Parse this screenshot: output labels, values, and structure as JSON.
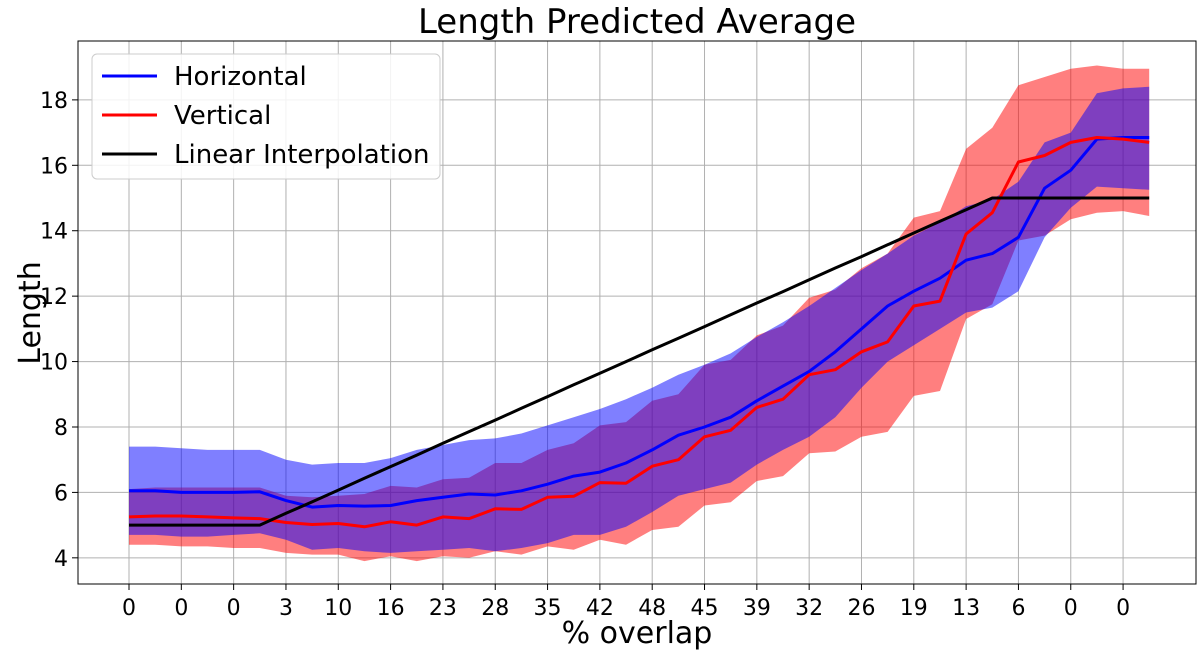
{
  "chart_data": {
    "type": "line",
    "title": "Length Predicted Average",
    "xlabel": "% overlap",
    "ylabel": "Length",
    "xtick_labels": [
      "0",
      "0",
      "0",
      "3",
      "10",
      "16",
      "23",
      "28",
      "35",
      "42",
      "48",
      "45",
      "39",
      "32",
      "26",
      "19",
      "13",
      "6",
      "0",
      "0"
    ],
    "ylim": [
      3.2,
      19.8
    ],
    "yticks": [
      4,
      6,
      8,
      10,
      12,
      14,
      16,
      18
    ],
    "grid": true,
    "legend_position": "top-left",
    "series": [
      {
        "name": "Horizontal",
        "color": "#0000ff",
        "band_color": "#0000ff",
        "values": [
          6.05,
          6.05,
          6.0,
          6.0,
          6.0,
          6.02,
          5.75,
          5.55,
          5.6,
          5.58,
          5.6,
          5.75,
          5.85,
          5.95,
          5.92,
          6.05,
          6.25,
          6.5,
          6.62,
          6.9,
          7.3,
          7.75,
          8.0,
          8.3,
          8.8,
          9.25,
          9.7,
          10.3,
          11.0,
          11.7,
          12.15,
          12.55,
          13.1,
          13.3,
          13.8,
          15.3,
          15.85,
          16.8,
          16.85,
          16.85
        ],
        "band_upper": [
          7.4,
          7.4,
          7.35,
          7.3,
          7.3,
          7.3,
          7.0,
          6.85,
          6.9,
          6.9,
          7.05,
          7.3,
          7.45,
          7.6,
          7.65,
          7.8,
          8.05,
          8.3,
          8.55,
          8.85,
          9.2,
          9.6,
          9.9,
          10.25,
          10.75,
          11.2,
          11.7,
          12.25,
          12.8,
          13.3,
          13.85,
          14.25,
          14.75,
          14.95,
          15.5,
          16.7,
          17.0,
          18.2,
          18.35,
          18.4
        ],
        "band_lower": [
          4.7,
          4.7,
          4.65,
          4.65,
          4.7,
          4.75,
          4.55,
          4.25,
          4.3,
          4.2,
          4.15,
          4.2,
          4.25,
          4.3,
          4.2,
          4.3,
          4.45,
          4.7,
          4.7,
          4.95,
          5.4,
          5.9,
          6.1,
          6.3,
          6.85,
          7.3,
          7.7,
          8.3,
          9.2,
          10.0,
          10.5,
          11.0,
          11.5,
          11.65,
          12.15,
          13.8,
          14.7,
          15.35,
          15.3,
          15.25
        ]
      },
      {
        "name": "Vertical",
        "color": "#ff0000",
        "band_color": "#ff0000",
        "values": [
          5.25,
          5.28,
          5.28,
          5.25,
          5.22,
          5.2,
          5.08,
          5.02,
          5.05,
          4.95,
          5.1,
          5.0,
          5.25,
          5.2,
          5.5,
          5.48,
          5.85,
          5.88,
          6.3,
          6.28,
          6.8,
          7.0,
          7.7,
          7.9,
          8.6,
          8.85,
          9.6,
          9.75,
          10.3,
          10.6,
          11.7,
          11.85,
          13.9,
          14.55,
          16.1,
          16.3,
          16.7,
          16.85,
          16.8,
          16.7
        ],
        "band_upper": [
          6.1,
          6.15,
          6.15,
          6.15,
          6.15,
          6.15,
          5.9,
          5.85,
          5.9,
          5.95,
          6.2,
          6.15,
          6.4,
          6.45,
          6.9,
          6.9,
          7.3,
          7.5,
          8.05,
          8.15,
          8.8,
          9.0,
          9.9,
          10.05,
          10.8,
          11.1,
          11.95,
          12.2,
          12.85,
          13.3,
          14.4,
          14.6,
          16.5,
          17.15,
          18.45,
          18.7,
          18.95,
          19.05,
          18.95,
          18.95
        ],
        "band_lower": [
          4.4,
          4.4,
          4.35,
          4.35,
          4.3,
          4.3,
          4.15,
          4.1,
          4.1,
          3.9,
          4.05,
          3.9,
          4.05,
          4.0,
          4.2,
          4.1,
          4.35,
          4.25,
          4.55,
          4.4,
          4.85,
          4.95,
          5.6,
          5.7,
          6.35,
          6.5,
          7.2,
          7.25,
          7.7,
          7.85,
          8.95,
          9.1,
          11.3,
          11.75,
          13.7,
          13.85,
          14.35,
          14.55,
          14.6,
          14.45
        ]
      },
      {
        "name": "Linear Interpolation",
        "color": "#000000",
        "values": [
          5.0,
          5.0,
          5.0,
          5.0,
          5.0,
          5.0,
          5.36,
          5.71,
          6.07,
          6.43,
          6.79,
          7.14,
          7.5,
          7.86,
          8.21,
          8.57,
          8.93,
          9.29,
          9.64,
          10.0,
          10.36,
          10.71,
          11.07,
          11.43,
          11.79,
          12.14,
          12.5,
          12.86,
          13.21,
          13.57,
          13.93,
          14.29,
          14.64,
          15.0,
          15.0,
          15.0,
          15.0,
          15.0,
          15.0,
          15.0
        ]
      }
    ]
  }
}
